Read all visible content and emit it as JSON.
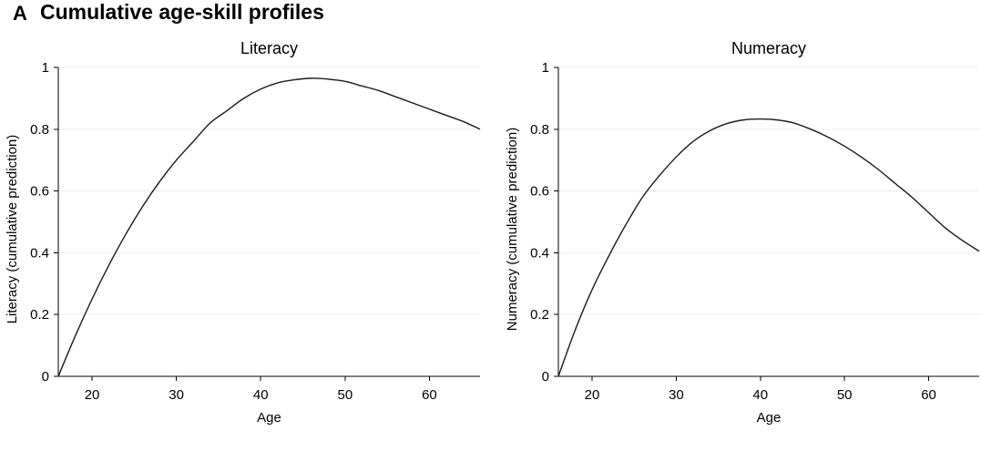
{
  "figure": {
    "panel_label": "A",
    "title": "Cumulative age-skill profiles"
  },
  "chart_data": [
    {
      "type": "line",
      "title": "Literacy",
      "xlabel": "Age",
      "ylabel": "Literacy (cumulative prediction)",
      "xlim": [
        16,
        66
      ],
      "ylim": [
        0,
        1
      ],
      "xticks": [
        20,
        30,
        40,
        50,
        60
      ],
      "yticks": [
        0,
        0.2,
        0.4,
        0.6,
        0.8,
        1
      ],
      "ytick_labels": [
        "0",
        "0.2",
        "0.4",
        "0.6",
        "0.8",
        "1"
      ],
      "grid": true,
      "series": [
        {
          "color": "#1a1a1a",
          "x": [
            16,
            18,
            20,
            22,
            24,
            26,
            28,
            30,
            32,
            34,
            36,
            38,
            40,
            42,
            44,
            46,
            48,
            50,
            52,
            54,
            56,
            58,
            60,
            62,
            64,
            66
          ],
          "y": [
            0,
            0.13,
            0.25,
            0.36,
            0.46,
            0.55,
            0.63,
            0.7,
            0.76,
            0.82,
            0.86,
            0.9,
            0.93,
            0.95,
            0.96,
            0.965,
            0.962,
            0.955,
            0.94,
            0.925,
            0.905,
            0.885,
            0.865,
            0.845,
            0.825,
            0.8
          ]
        }
      ]
    },
    {
      "type": "line",
      "title": "Numeracy",
      "xlabel": "Age",
      "ylabel": "Numeracy (cumulative prediction)",
      "xlim": [
        16,
        66
      ],
      "ylim": [
        0,
        1
      ],
      "xticks": [
        20,
        30,
        40,
        50,
        60
      ],
      "yticks": [
        0,
        0.2,
        0.4,
        0.6,
        0.8,
        1
      ],
      "ytick_labels": [
        "0",
        "0.2",
        "0.4",
        "0.6",
        "0.8",
        "1"
      ],
      "grid": true,
      "series": [
        {
          "color": "#1a1a1a",
          "x": [
            16,
            18,
            20,
            22,
            24,
            26,
            28,
            30,
            32,
            34,
            36,
            38,
            40,
            42,
            44,
            46,
            48,
            50,
            52,
            54,
            56,
            58,
            60,
            62,
            64,
            66
          ],
          "y": [
            0,
            0.15,
            0.28,
            0.39,
            0.49,
            0.58,
            0.65,
            0.71,
            0.76,
            0.795,
            0.818,
            0.83,
            0.833,
            0.83,
            0.82,
            0.8,
            0.775,
            0.745,
            0.71,
            0.67,
            0.625,
            0.58,
            0.53,
            0.48,
            0.44,
            0.405
          ]
        }
      ]
    }
  ]
}
